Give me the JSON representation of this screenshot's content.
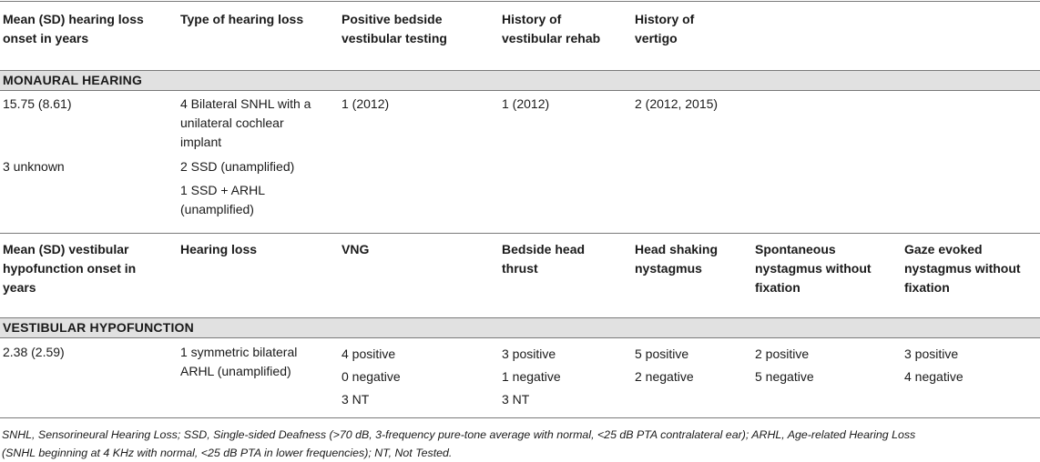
{
  "header1": {
    "col1": [
      "Mean (SD) hearing loss",
      "onset in years"
    ],
    "col2": [
      "Type of hearing loss"
    ],
    "col3": [
      "Positive bedside",
      "vestibular testing"
    ],
    "col4": [
      "History of",
      "vestibular rehab"
    ],
    "col5": [
      "History of",
      "vertigo"
    ]
  },
  "section1": {
    "title": "MONAURAL HEARING"
  },
  "monaural": {
    "onset": [
      "15.75 (8.61)",
      "3 unknown"
    ],
    "type": [
      [
        "4 Bilateral SNHL with a",
        "unilateral cochlear",
        "implant"
      ],
      [
        "2 SSD (unamplified)"
      ],
      [
        "1 SSD + ARHL",
        "(unamplified)"
      ]
    ],
    "bedside": "1 (2012)",
    "rehab": "1 (2012)",
    "vertigo": "2 (2012, 2015)"
  },
  "header2": {
    "col1": [
      "Mean (SD) vestibular",
      "hypofunction onset in",
      "years"
    ],
    "col2": [
      "Hearing loss"
    ],
    "col3": [
      "VNG"
    ],
    "col4": [
      "Bedside head",
      "thrust"
    ],
    "col5": [
      "Head shaking",
      "nystagmus"
    ],
    "col6": [
      "Spontaneous",
      "nystagmus without",
      "fixation"
    ],
    "col7": [
      "Gaze evoked",
      "nystagmus without",
      "fixation"
    ]
  },
  "section2": {
    "title": "VESTIBULAR HYPOFUNCTION"
  },
  "vestibular": {
    "onset": "2.38 (2.59)",
    "hearing_loss": [
      "1 symmetric bilateral",
      "ARHL (unamplified)"
    ],
    "vng": [
      "4 positive",
      "0 negative",
      "3 NT"
    ],
    "head_thrust": [
      "3 positive",
      "1 negative",
      "3 NT"
    ],
    "head_shaking": [
      "5 positive",
      "2 negative"
    ],
    "spontaneous": [
      "2 positive",
      "5 negative"
    ],
    "gaze": [
      "3 positive",
      "4 negative"
    ]
  },
  "footnote": [
    "SNHL, Sensorineural Hearing Loss; SSD, Single-sided Deafness (>70 dB, 3-frequency pure-tone average with normal, <25 dB PTA contralateral ear); ARHL, Age-related Hearing Loss",
    "(SNHL beginning at 4 KHz with normal, <25 dB PTA in lower frequencies); NT, Not Tested."
  ]
}
